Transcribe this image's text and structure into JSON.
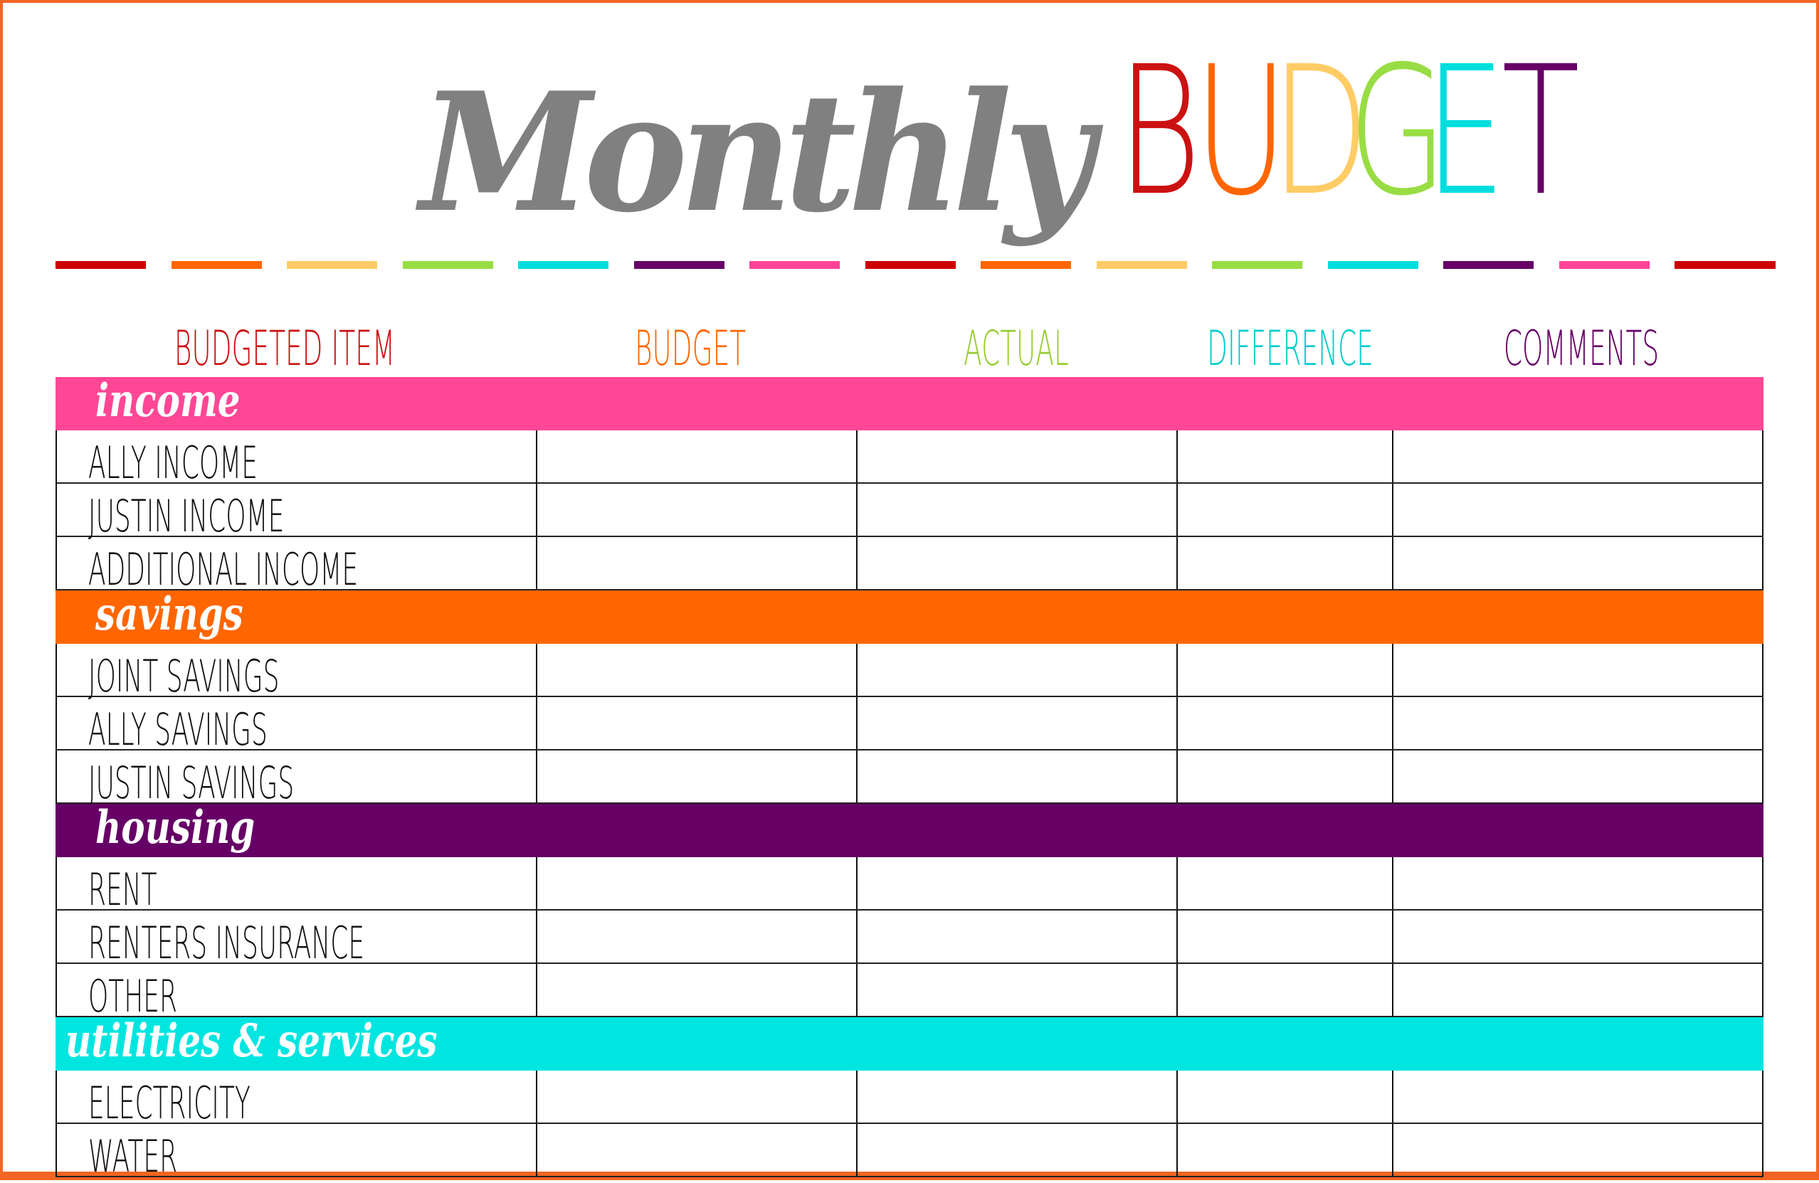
{
  "title": {
    "script_word": "Monthly",
    "budget_letters": [
      {
        "letter": "B",
        "color": "#cc1111"
      },
      {
        "letter": "U",
        "color": "#ff6600"
      },
      {
        "letter": "D",
        "color": "#ffcc66"
      },
      {
        "letter": "G",
        "color": "#99dd44"
      },
      {
        "letter": "E",
        "color": "#00dddd"
      },
      {
        "letter": "T",
        "color": "#660066"
      }
    ]
  },
  "divider_colors": [
    "#cc0000",
    "#ff6600",
    "#ffcc66",
    "#99dd44",
    "#00dddd",
    "#660066",
    "#ff4499",
    "#cc0000",
    "#ff6600",
    "#ffcc66",
    "#99dd44",
    "#00dddd",
    "#660066",
    "#ff4499",
    "#cc0000"
  ],
  "columns": [
    {
      "label": "BUDGETED ITEM",
      "color": "#cc1111"
    },
    {
      "label": "BUDGET",
      "color": "#ff6600"
    },
    {
      "label": "ACTUAL",
      "color": "#99cc33"
    },
    {
      "label": "DIFFERENCE",
      "color": "#00cccc"
    },
    {
      "label": "COMMENTS",
      "color": "#660066"
    }
  ],
  "sections": [
    {
      "name": "income",
      "color": "#ff4795",
      "items": [
        "ALLY INCOME",
        "JUSTIN INCOME",
        "ADDITIONAL INCOME"
      ]
    },
    {
      "name": "savings",
      "color": "#ff6600",
      "items": [
        "JOINT SAVINGS",
        "ALLY SAVINGS",
        "JUSTIN SAVINGS"
      ]
    },
    {
      "name": "housing",
      "color": "#660066",
      "items": [
        "RENT",
        "RENTERS INSURANCE",
        "OTHER"
      ]
    },
    {
      "name": "utilities & services",
      "color": "#00e5e0",
      "items": [
        "ELECTRICITY",
        "WATER"
      ]
    }
  ]
}
